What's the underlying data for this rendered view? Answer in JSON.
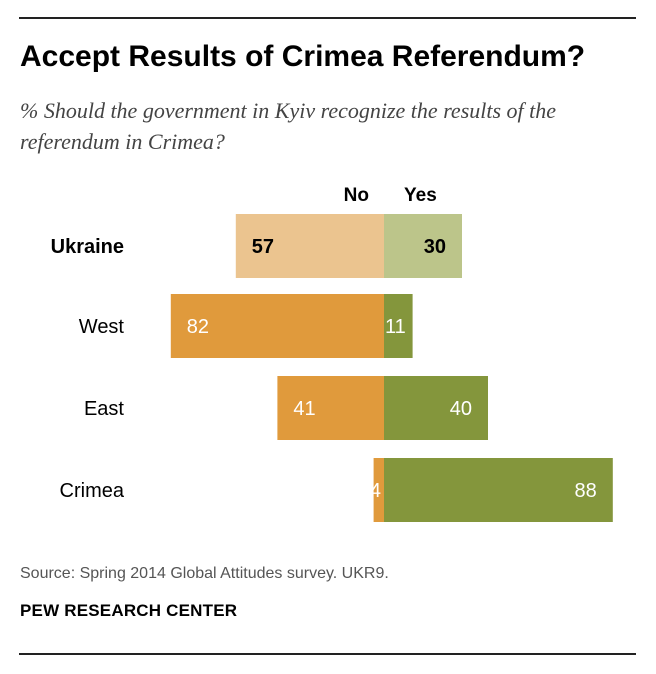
{
  "title": "Accept Results of Crimea Referendum?",
  "subtitle": "% Should the government in Kyiv recognize the results of the referendum in Crimea?",
  "source": "Source: Spring 2014 Global Attitudes survey. UKR9.",
  "brand": "PEW RESEARCH CENTER",
  "colors": {
    "no": "#e09a3c",
    "yes": "#84963c",
    "no_light": "#ebc48f",
    "yes_light": "#bcc58a",
    "label_dark": "#000000",
    "label_light": "#ffffff"
  },
  "chart_data": {
    "type": "bar",
    "orientation": "horizontal-diverging",
    "title": "Accept Results of Crimea Referendum?",
    "xlabel": "",
    "ylabel": "",
    "categories": [
      "Ukraine",
      "West",
      "East",
      "Crimea"
    ],
    "highlight_category": "Ukraine",
    "series": [
      {
        "name": "No",
        "values": [
          57,
          82,
          41,
          4
        ]
      },
      {
        "name": "Yes",
        "values": [
          30,
          11,
          40,
          88
        ]
      }
    ],
    "xlim": [
      0,
      100
    ],
    "grid": false,
    "legend": "top-center"
  }
}
